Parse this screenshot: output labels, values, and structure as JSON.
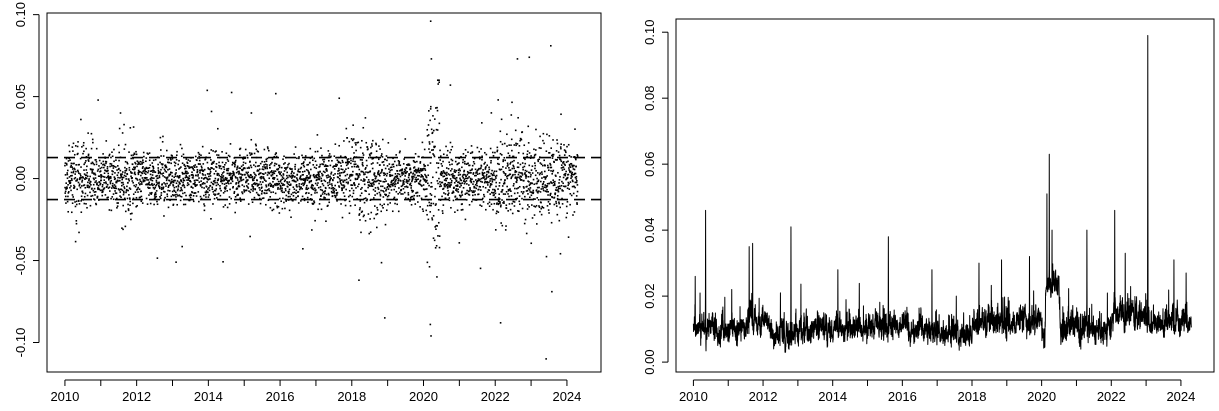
{
  "chart_data": [
    {
      "type": "scatter",
      "title": "",
      "xlabel": "",
      "ylabel": "",
      "xlim": [
        2009.5,
        2024.95
      ],
      "ylim": [
        -0.118,
        0.101
      ],
      "x_ticks": [
        2010,
        2012,
        2014,
        2016,
        2018,
        2020,
        2022,
        2024
      ],
      "x_minor_ticks": [
        2011,
        2013,
        2015,
        2017,
        2019,
        2021,
        2023
      ],
      "y_ticks": [
        -0.1,
        -0.05,
        0.0,
        0.05,
        0.1
      ],
      "x_tick_labels": [
        "2010",
        "2012",
        "2014",
        "2016",
        "2018",
        "2020",
        "2022",
        "2024"
      ],
      "y_tick_labels": [
        "-0.10",
        "-0.05",
        "0.00",
        "0.05",
        "0.10"
      ],
      "x_range": [
        2010.0,
        2024.3
      ],
      "n_points": 3600,
      "series": [
        {
          "values_generated": "daily returns, mostly within ±0.03, with outliers up to about 0.096 and down to about -0.11"
        }
      ],
      "notable_points": [
        {
          "x": 2020.2,
          "y": 0.096
        },
        {
          "x": 2020.22,
          "y": 0.073
        },
        {
          "x": 2020.21,
          "y": -0.096
        },
        {
          "x": 2020.19,
          "y": -0.089
        },
        {
          "x": 2023.42,
          "y": -0.11
        },
        {
          "x": 2023.55,
          "y": 0.081
        },
        {
          "x": 2023.58,
          "y": -0.069
        },
        {
          "x": 2022.15,
          "y": -0.088
        },
        {
          "x": 2018.92,
          "y": -0.085
        },
        {
          "x": 2022.62,
          "y": 0.073
        },
        {
          "x": 2022.95,
          "y": 0.074
        },
        {
          "x": 2013.1,
          "y": -0.051
        },
        {
          "x": 2018.2,
          "y": -0.062
        },
        {
          "x": 2020.75,
          "y": 0.057
        },
        {
          "x": 2017.65,
          "y": 0.049
        },
        {
          "x": 2015.2,
          "y": 0.04
        },
        {
          "x": 2011.55,
          "y": 0.04
        }
      ],
      "reference_lines": [
        0.0128,
        -0.0128
      ],
      "reference_line_style": "dashed",
      "grid": false,
      "legend": "none"
    },
    {
      "type": "line",
      "title": "",
      "xlabel": "",
      "ylabel": "",
      "xlim": [
        2009.5,
        2024.95
      ],
      "ylim": [
        -0.003,
        0.104
      ],
      "x_ticks": [
        2010,
        2012,
        2014,
        2016,
        2018,
        2020,
        2022,
        2024
      ],
      "x_minor_ticks": [
        2011,
        2013,
        2015,
        2017,
        2019,
        2021,
        2023
      ],
      "y_ticks": [
        0.0,
        0.02,
        0.04,
        0.06,
        0.08,
        0.1
      ],
      "x_tick_labels": [
        "2010",
        "2012",
        "2014",
        "2016",
        "2018",
        "2020",
        "2022",
        "2024"
      ],
      "y_tick_labels": [
        "0.00",
        "0.02",
        "0.04",
        "0.06",
        "0.08",
        "0.10"
      ],
      "x_range": [
        2010.0,
        2024.3
      ],
      "baseline_range": [
        0.004,
        0.016
      ],
      "spikes": [
        {
          "x": 2010.05,
          "y": 0.026
        },
        {
          "x": 2010.35,
          "y": 0.046
        },
        {
          "x": 2011.1,
          "y": 0.022
        },
        {
          "x": 2011.6,
          "y": 0.035
        },
        {
          "x": 2011.7,
          "y": 0.036
        },
        {
          "x": 2012.5,
          "y": 0.021
        },
        {
          "x": 2012.8,
          "y": 0.041
        },
        {
          "x": 2014.15,
          "y": 0.028
        },
        {
          "x": 2015.6,
          "y": 0.038
        },
        {
          "x": 2016.85,
          "y": 0.028
        },
        {
          "x": 2017.55,
          "y": 0.02
        },
        {
          "x": 2018.2,
          "y": 0.03
        },
        {
          "x": 2018.85,
          "y": 0.031
        },
        {
          "x": 2019.65,
          "y": 0.032
        },
        {
          "x": 2020.15,
          "y": 0.051
        },
        {
          "x": 2020.22,
          "y": 0.063
        },
        {
          "x": 2020.3,
          "y": 0.04
        },
        {
          "x": 2021.3,
          "y": 0.04
        },
        {
          "x": 2022.1,
          "y": 0.046
        },
        {
          "x": 2022.4,
          "y": 0.033
        },
        {
          "x": 2023.05,
          "y": 0.099
        },
        {
          "x": 2023.8,
          "y": 0.031
        },
        {
          "x": 2024.15,
          "y": 0.027
        }
      ],
      "grid": false,
      "legend": "none"
    }
  ]
}
